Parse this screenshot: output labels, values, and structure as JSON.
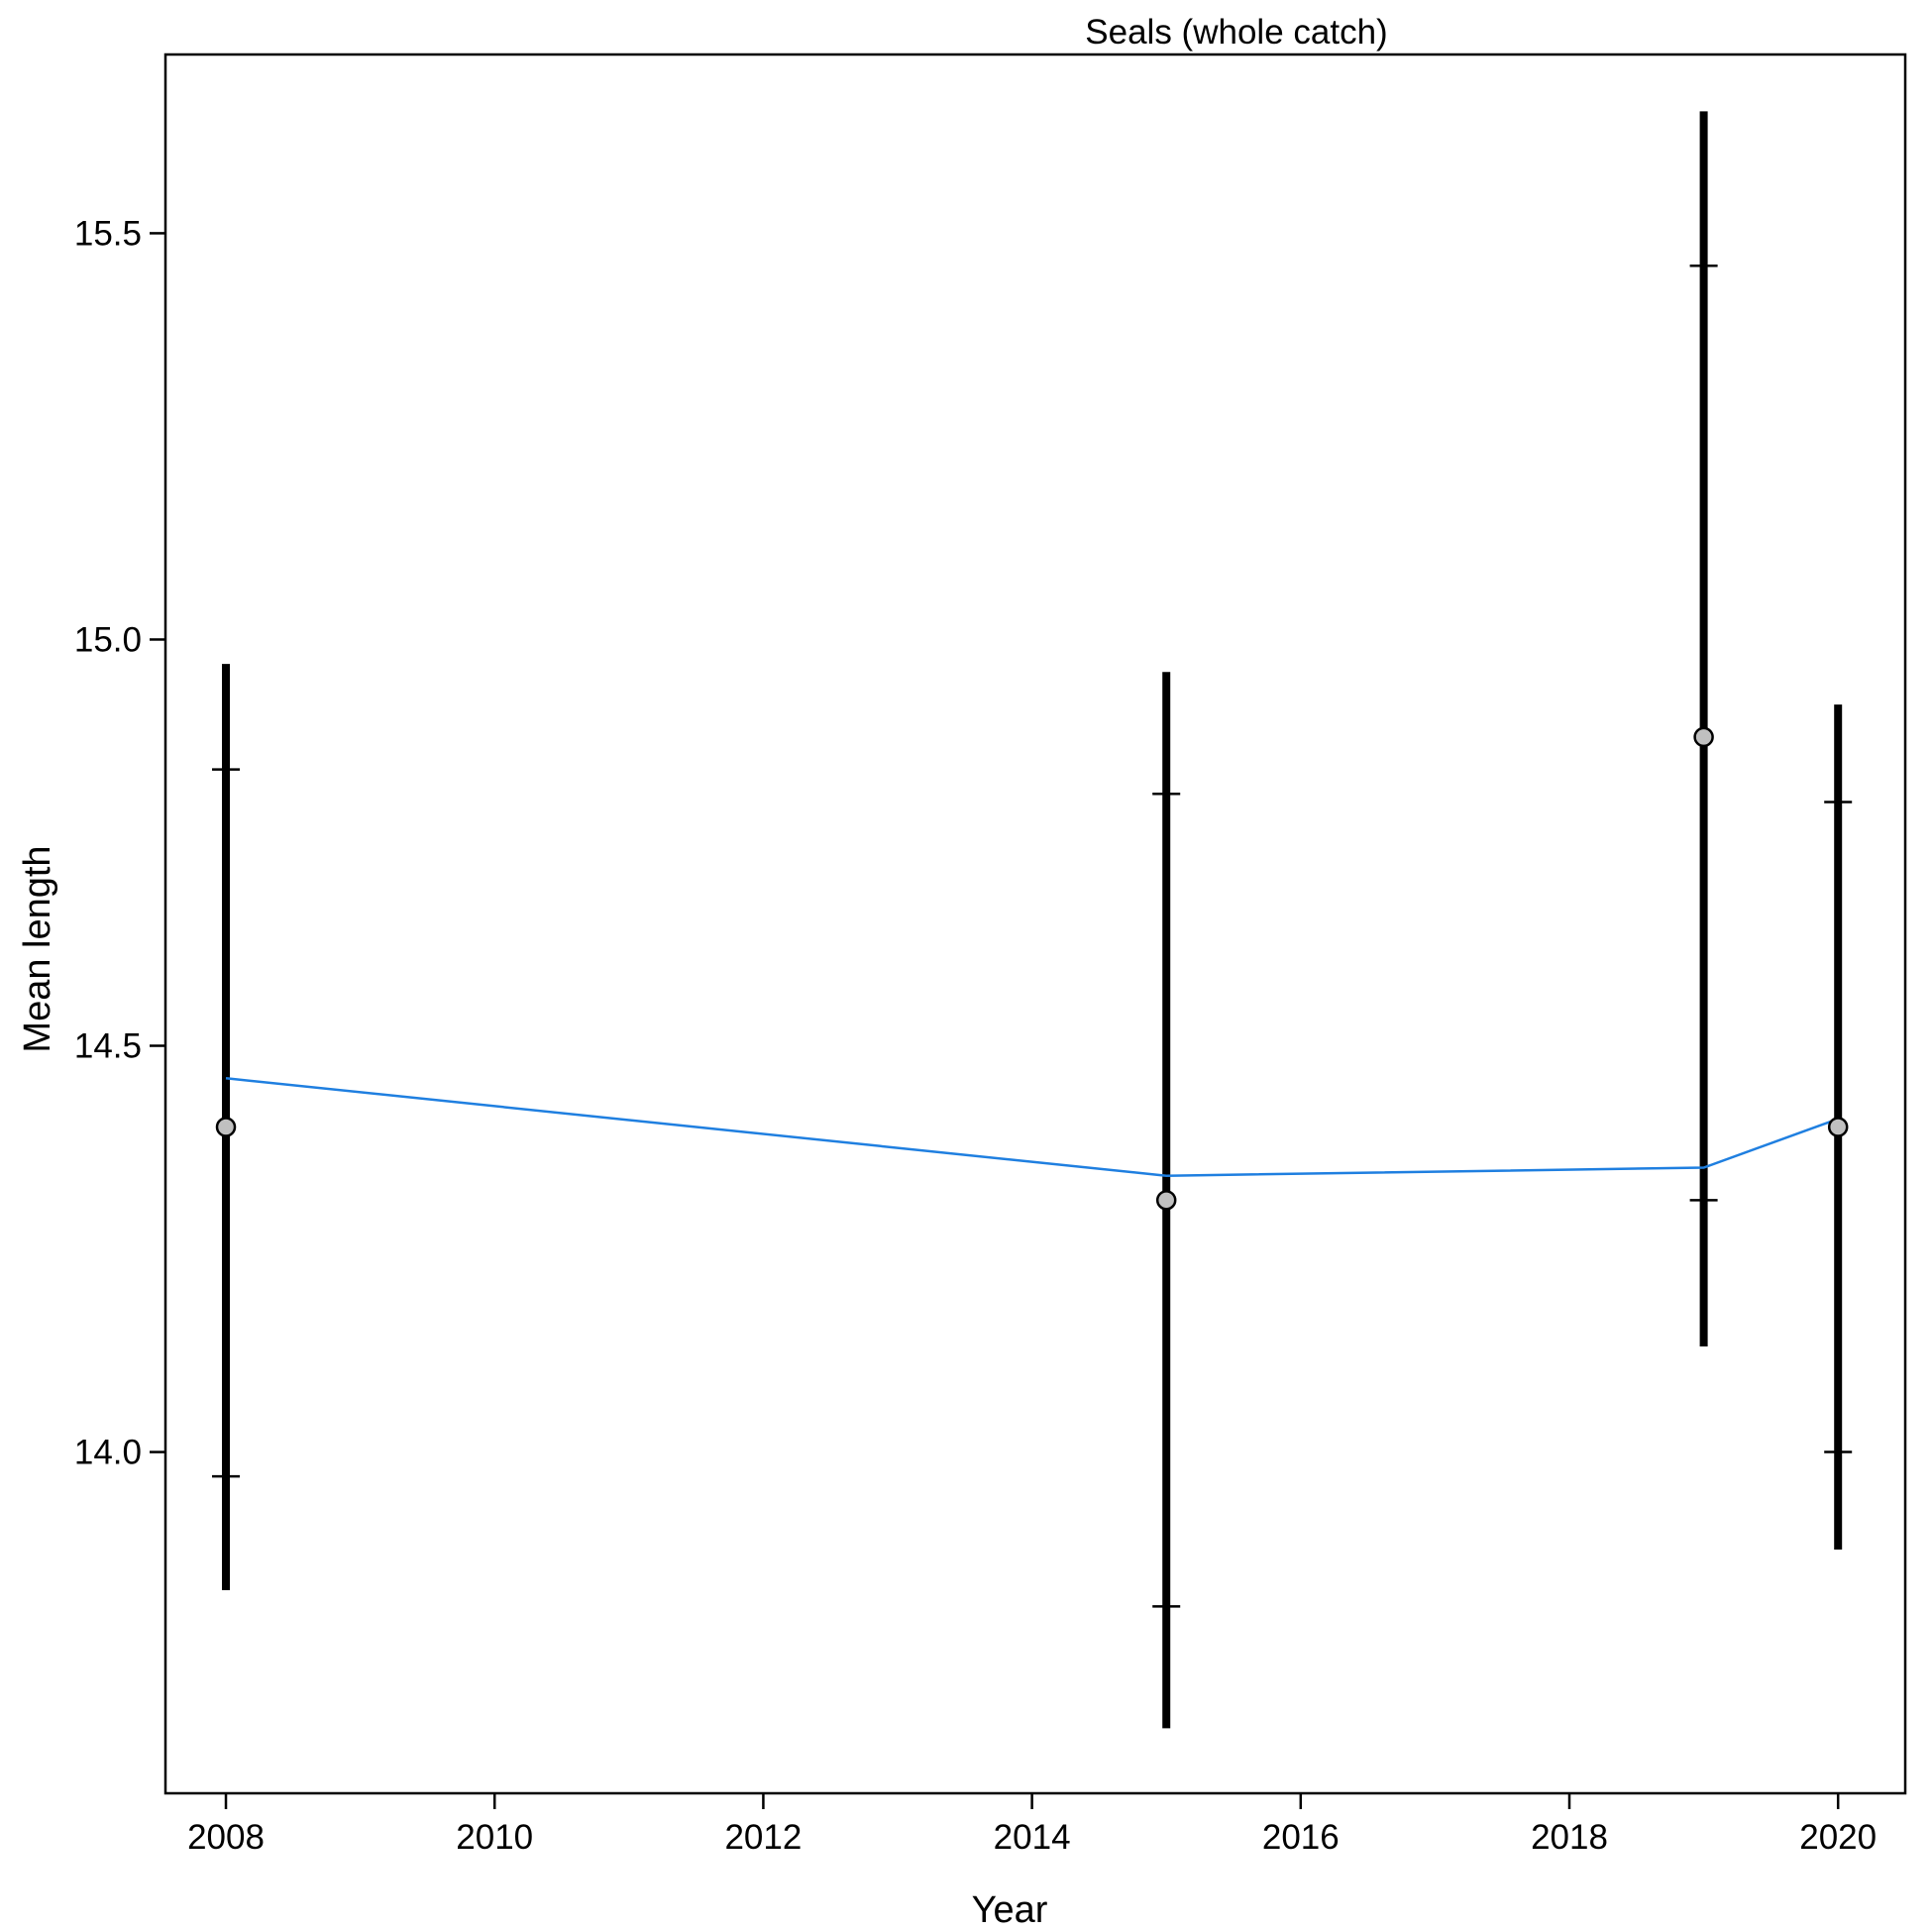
{
  "chart_data": {
    "type": "line",
    "title": "Seals (whole catch)",
    "xlabel": "Year",
    "ylabel": "Mean length",
    "xlim": [
      2007.55,
      2020.5
    ],
    "ylim": [
      13.58,
      15.72
    ],
    "xticks": [
      2008,
      2010,
      2012,
      2014,
      2016,
      2018,
      2020
    ],
    "xtick_labels": [
      "2008",
      "2010",
      "2012",
      "2014",
      "2016",
      "2018",
      "2020"
    ],
    "yticks": [
      14.0,
      14.5,
      15.0,
      15.5
    ],
    "ytick_labels": [
      "14.0",
      "14.5",
      "15.0",
      "15.5"
    ],
    "grid": false,
    "legend": "none",
    "series": [
      {
        "type": "points_with_intervals",
        "x": [
          2008,
          2015,
          2019,
          2020
        ],
        "values": [
          14.4,
          14.31,
          14.88,
          14.4
        ],
        "outer_lower": [
          13.83,
          13.66,
          14.13,
          13.88
        ],
        "outer_upper": [
          14.97,
          14.96,
          15.65,
          14.92
        ],
        "inner_lower": [
          13.97,
          13.81,
          14.31,
          14.0
        ],
        "inner_upper": [
          14.84,
          14.81,
          15.46,
          14.8
        ],
        "color": "#000000",
        "marker_fill": "#c0c0c0"
      },
      {
        "type": "line",
        "x": [
          2008,
          2015,
          2019,
          2020
        ],
        "values": [
          14.46,
          14.34,
          14.35,
          14.41
        ],
        "color": "#1f7fe0"
      }
    ]
  }
}
